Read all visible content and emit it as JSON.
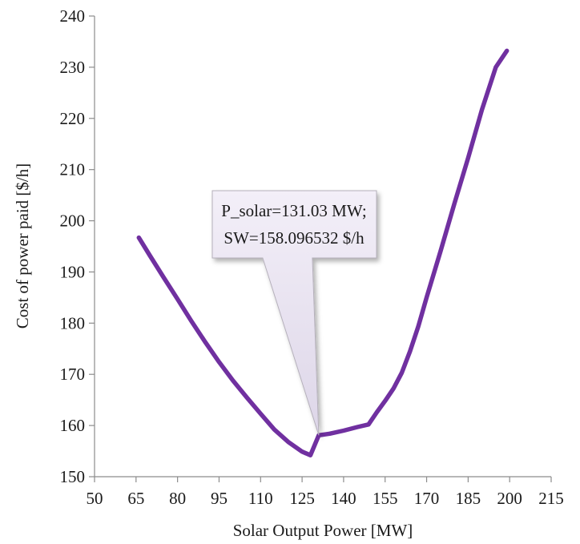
{
  "chart_data": {
    "type": "line",
    "xlabel": "Solar Output Power [MW]",
    "ylabel": "Cost of power paid [$/h]",
    "xlim": [
      50,
      215
    ],
    "ylim": [
      150,
      240
    ],
    "x_ticks": [
      50,
      65,
      80,
      95,
      110,
      125,
      140,
      155,
      170,
      185,
      200,
      215
    ],
    "y_ticks": [
      150,
      160,
      170,
      180,
      190,
      200,
      210,
      220,
      230,
      240
    ],
    "grid": false,
    "legend": "none",
    "series": [
      {
        "color": "#7030a0",
        "x": [
          66,
          70,
          75,
          80,
          85,
          90,
          95,
          100,
          105,
          110,
          115,
          120,
          125,
          128,
          131.03,
          135,
          140,
          145,
          149,
          152,
          155,
          158,
          161,
          164,
          167,
          170,
          175,
          180,
          185,
          190,
          195,
          199
        ],
        "y": [
          196.7,
          193.2,
          188.9,
          184.7,
          180.4,
          176.3,
          172.4,
          168.8,
          165.5,
          162.3,
          159.2,
          156.8,
          154.9,
          154.2,
          158.1,
          158.4,
          159.0,
          159.7,
          160.2,
          162.6,
          164.8,
          167.2,
          170.3,
          174.5,
          179.4,
          185.0,
          194.0,
          203.3,
          212.3,
          221.7,
          230.0,
          233.2
        ]
      }
    ],
    "annotation": {
      "x": 131.03,
      "y": 158.1,
      "lines": [
        "P_solar=131.03 MW;",
        "SW=158.096532 $/h"
      ]
    }
  }
}
